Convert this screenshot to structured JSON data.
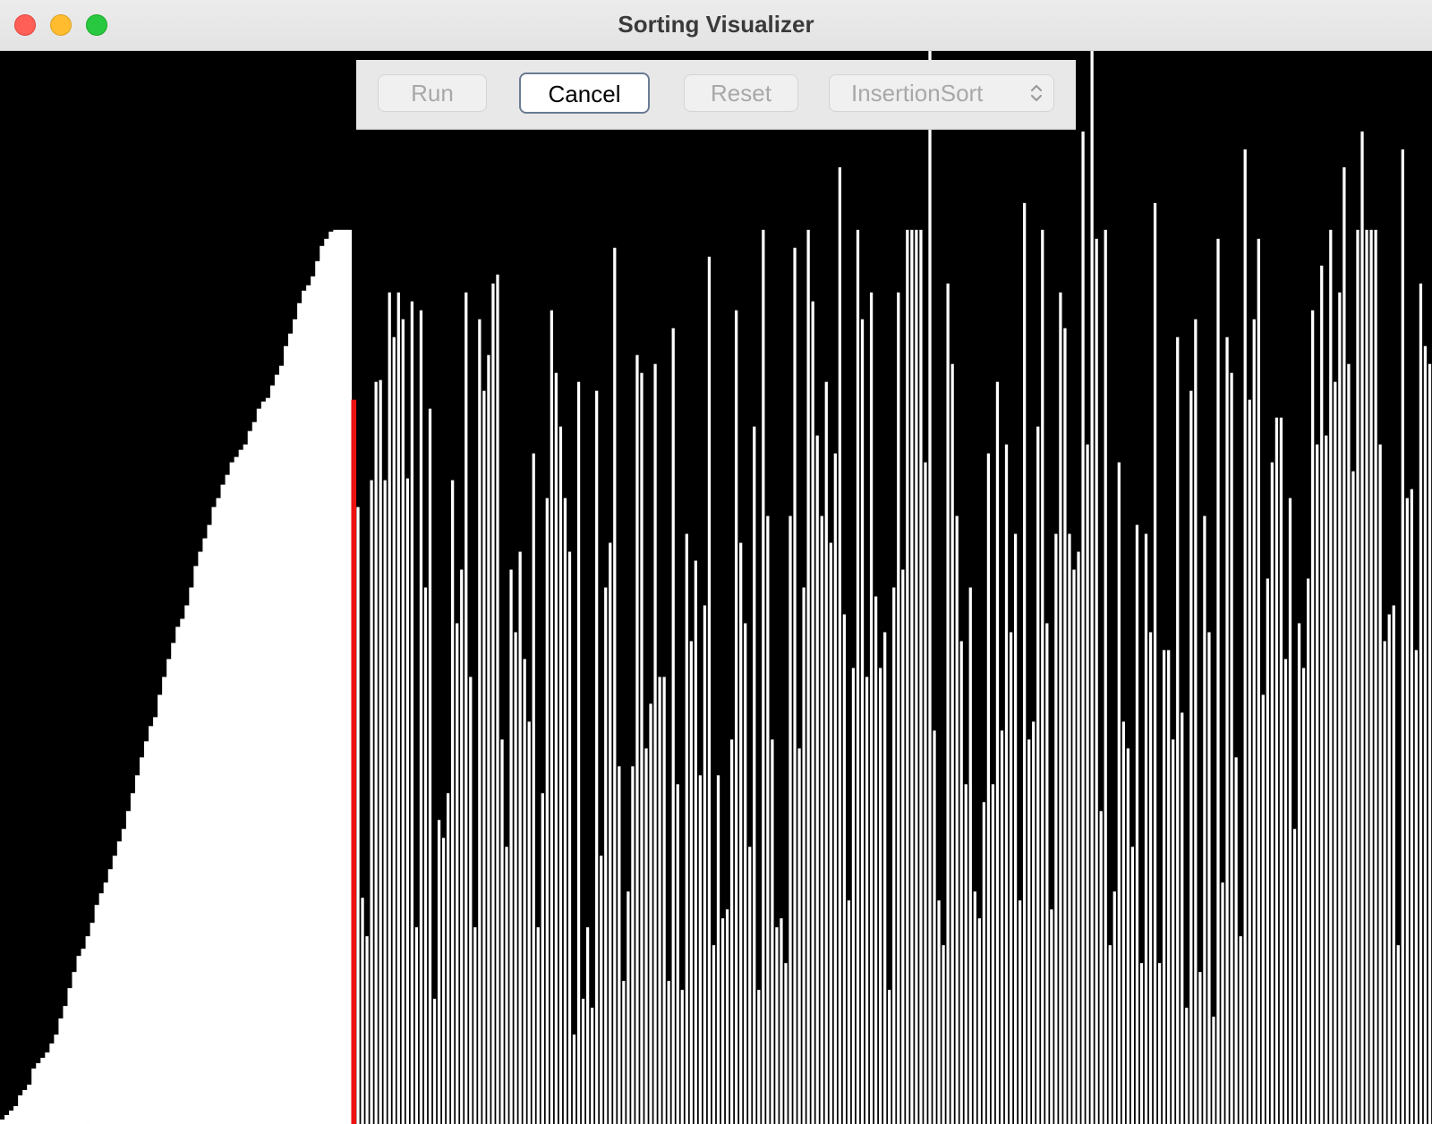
{
  "window": {
    "title": "Sorting Visualizer"
  },
  "toolbar": {
    "run_label": "Run",
    "cancel_label": "Cancel",
    "reset_label": "Reset",
    "algorithm_selected": "InsertionSort"
  },
  "visualizer": {
    "background_color": "#000000",
    "bar_color": "#ffffff",
    "marker_color": "#ee1111",
    "max_value": 1000,
    "marker_index": 78,
    "sorted_prefix": [
      5,
      10,
      15,
      20,
      32,
      38,
      44,
      62,
      68,
      74,
      80,
      90,
      100,
      118,
      132,
      152,
      170,
      188,
      196,
      210,
      225,
      245,
      258,
      270,
      285,
      300,
      316,
      330,
      350,
      370,
      390,
      410,
      428,
      445,
      455,
      480,
      500,
      520,
      538,
      556,
      565,
      580,
      600,
      624,
      640,
      655,
      670,
      690,
      700,
      715,
      726,
      740,
      746,
      754,
      760,
      775,
      785,
      800,
      808,
      812,
      826,
      838,
      848,
      870,
      884,
      900,
      918,
      932,
      938,
      948,
      965,
      982,
      990,
      998,
      1000,
      1000,
      1000,
      1000,
      810
    ],
    "unsorted": [
      690,
      253,
      210,
      720,
      830,
      832,
      720,
      930,
      880,
      930,
      900,
      722,
      920,
      220,
      910,
      600,
      800,
      140,
      340,
      320,
      370,
      720,
      560,
      620,
      930,
      500,
      220,
      900,
      820,
      860,
      940,
      950,
      430,
      310,
      620,
      550,
      640,
      520,
      450,
      750,
      220,
      370,
      700,
      910,
      840,
      780,
      700,
      640,
      100,
      830,
      140,
      220,
      130,
      820,
      300,
      600,
      650,
      980,
      400,
      160,
      260,
      400,
      860,
      840,
      420,
      470,
      850,
      500,
      500,
      160,
      890,
      380,
      150,
      660,
      540,
      630,
      390,
      580,
      970,
      200,
      390,
      230,
      240,
      430,
      910,
      650,
      560,
      310,
      780,
      150,
      1000,
      680,
      430,
      220,
      230,
      180,
      680,
      980,
      420,
      600,
      1000,
      920,
      770,
      680,
      830,
      650,
      750,
      1070,
      570,
      250,
      510,
      1000,
      900,
      500,
      930,
      590,
      510,
      550,
      150,
      600,
      930,
      620,
      1000,
      1000,
      1000,
      1000,
      740,
      1200,
      440,
      250,
      200,
      940,
      850,
      680,
      540,
      380,
      600,
      260,
      230,
      360,
      750,
      380,
      830,
      440,
      760,
      550,
      660,
      250,
      1030,
      430,
      450,
      780,
      1000,
      560,
      240,
      660,
      930,
      890,
      660,
      620,
      640,
      1110,
      760,
      1200,
      990,
      350,
      1000,
      200,
      260,
      740,
      450,
      420,
      310,
      670,
      180,
      660,
      550,
      1030,
      180,
      530,
      530,
      430,
      880,
      460,
      130,
      820,
      900,
      170,
      680,
      550,
      120,
      990,
      270,
      880,
      840,
      410,
      210,
      1090,
      810,
      900,
      990,
      480,
      610,
      740,
      790,
      790,
      520,
      700,
      330,
      560,
      510,
      610,
      910,
      760,
      960,
      770,
      1000,
      830,
      930,
      1070,
      850,
      730,
      1000,
      1110,
      1000,
      1000,
      1000,
      760,
      540,
      570,
      580,
      200,
      1090,
      700,
      710,
      530,
      940,
      870,
      850
    ]
  }
}
